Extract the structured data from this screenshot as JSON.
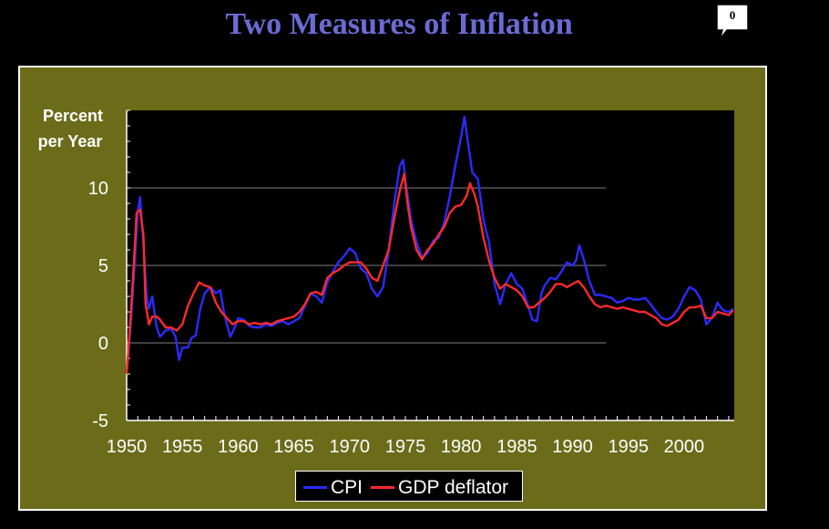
{
  "slide": {
    "title": "Two Measures of Inflation",
    "comment_count": "0"
  },
  "chart_data": {
    "type": "line",
    "title": "Two Measures of Inflation",
    "xlabel": "",
    "ylabel_lines": [
      "Percent",
      "per Year"
    ],
    "xlim": [
      1950,
      2004.5
    ],
    "ylim": [
      -5,
      15
    ],
    "x_ticks": [
      1950,
      1955,
      1960,
      1965,
      1970,
      1975,
      1980,
      1985,
      1990,
      1995,
      2000
    ],
    "y_ticks": [
      -5,
      0,
      5,
      10
    ],
    "grid": "horizontal",
    "legend_position": "bottom-center",
    "colors": {
      "frame": "#6b6b19",
      "plot_bg": "#000000",
      "cpi": "#2b2bff",
      "gdp_deflator": "#ff2a2a",
      "gridline": "#808080",
      "title": "#6b6bd6"
    },
    "series": [
      {
        "name": "CPI",
        "color": "#2b2bff",
        "points": [
          [
            1950.0,
            -2.0
          ],
          [
            1950.4,
            1.5
          ],
          [
            1950.8,
            6.0
          ],
          [
            1951.0,
            8.5
          ],
          [
            1951.2,
            9.4
          ],
          [
            1951.5,
            6.5
          ],
          [
            1951.8,
            3.0
          ],
          [
            1952.0,
            2.2
          ],
          [
            1952.3,
            3.0
          ],
          [
            1952.7,
            1.0
          ],
          [
            1953.0,
            0.4
          ],
          [
            1953.5,
            0.8
          ],
          [
            1954.0,
            0.9
          ],
          [
            1954.4,
            0.4
          ],
          [
            1954.7,
            -1.1
          ],
          [
            1955.0,
            -0.3
          ],
          [
            1955.5,
            -0.3
          ],
          [
            1955.8,
            0.3
          ],
          [
            1956.2,
            0.5
          ],
          [
            1956.6,
            2.2
          ],
          [
            1957.0,
            3.2
          ],
          [
            1957.5,
            3.6
          ],
          [
            1958.0,
            3.2
          ],
          [
            1958.4,
            3.4
          ],
          [
            1958.7,
            2.1
          ],
          [
            1959.0,
            1.2
          ],
          [
            1959.3,
            0.4
          ],
          [
            1959.7,
            1.0
          ],
          [
            1960.0,
            1.6
          ],
          [
            1960.5,
            1.5
          ],
          [
            1961.0,
            1.1
          ],
          [
            1961.5,
            1.0
          ],
          [
            1962.0,
            1.0
          ],
          [
            1962.5,
            1.2
          ],
          [
            1963.0,
            1.1
          ],
          [
            1963.5,
            1.3
          ],
          [
            1964.0,
            1.4
          ],
          [
            1964.5,
            1.2
          ],
          [
            1965.0,
            1.4
          ],
          [
            1965.5,
            1.6
          ],
          [
            1966.0,
            2.4
          ],
          [
            1966.5,
            3.2
          ],
          [
            1967.0,
            3.0
          ],
          [
            1967.5,
            2.6
          ],
          [
            1968.0,
            3.9
          ],
          [
            1968.5,
            4.6
          ],
          [
            1969.0,
            5.2
          ],
          [
            1969.5,
            5.6
          ],
          [
            1970.0,
            6.1
          ],
          [
            1970.5,
            5.8
          ],
          [
            1971.0,
            4.8
          ],
          [
            1971.5,
            4.5
          ],
          [
            1972.0,
            3.5
          ],
          [
            1972.5,
            3.0
          ],
          [
            1973.0,
            3.6
          ],
          [
            1973.5,
            5.9
          ],
          [
            1974.0,
            9.0
          ],
          [
            1974.5,
            11.4
          ],
          [
            1974.8,
            11.8
          ],
          [
            1975.0,
            10.5
          ],
          [
            1975.5,
            8.0
          ],
          [
            1976.0,
            6.5
          ],
          [
            1976.5,
            5.5
          ],
          [
            1977.0,
            5.8
          ],
          [
            1977.5,
            6.6
          ],
          [
            1978.0,
            6.8
          ],
          [
            1978.5,
            7.8
          ],
          [
            1979.0,
            9.5
          ],
          [
            1979.5,
            11.5
          ],
          [
            1980.0,
            13.3
          ],
          [
            1980.3,
            14.6
          ],
          [
            1980.6,
            13.0
          ],
          [
            1981.0,
            11.0
          ],
          [
            1981.5,
            10.6
          ],
          [
            1982.0,
            8.0
          ],
          [
            1982.5,
            6.5
          ],
          [
            1983.0,
            3.8
          ],
          [
            1983.5,
            2.5
          ],
          [
            1984.0,
            3.8
          ],
          [
            1984.5,
            4.5
          ],
          [
            1985.0,
            3.8
          ],
          [
            1985.5,
            3.5
          ],
          [
            1986.0,
            2.4
          ],
          [
            1986.4,
            1.5
          ],
          [
            1986.8,
            1.4
          ],
          [
            1987.2,
            3.2
          ],
          [
            1987.5,
            3.7
          ],
          [
            1988.0,
            4.2
          ],
          [
            1988.5,
            4.1
          ],
          [
            1989.0,
            4.6
          ],
          [
            1989.5,
            5.2
          ],
          [
            1990.0,
            5.0
          ],
          [
            1990.3,
            5.3
          ],
          [
            1990.6,
            6.3
          ],
          [
            1991.0,
            5.4
          ],
          [
            1991.5,
            4.0
          ],
          [
            1992.0,
            3.1
          ],
          [
            1992.5,
            3.1
          ],
          [
            1993.0,
            3.0
          ],
          [
            1993.5,
            2.9
          ],
          [
            1994.0,
            2.6
          ],
          [
            1994.5,
            2.7
          ],
          [
            1995.0,
            2.9
          ],
          [
            1995.5,
            2.8
          ],
          [
            1996.0,
            2.8
          ],
          [
            1996.5,
            2.9
          ],
          [
            1997.0,
            2.5
          ],
          [
            1997.5,
            2.0
          ],
          [
            1998.0,
            1.6
          ],
          [
            1998.5,
            1.5
          ],
          [
            1999.0,
            1.7
          ],
          [
            1999.5,
            2.2
          ],
          [
            2000.0,
            3.0
          ],
          [
            2000.5,
            3.6
          ],
          [
            2001.0,
            3.4
          ],
          [
            2001.5,
            2.8
          ],
          [
            2002.0,
            1.2
          ],
          [
            2002.5,
            1.6
          ],
          [
            2003.0,
            2.6
          ],
          [
            2003.5,
            2.1
          ],
          [
            2004.0,
            2.0
          ],
          [
            2004.4,
            2.2
          ]
        ]
      },
      {
        "name": "GDP deflator",
        "color": "#ff2a2a",
        "points": [
          [
            1950.0,
            -2.0
          ],
          [
            1950.3,
            1.0
          ],
          [
            1950.6,
            4.5
          ],
          [
            1950.9,
            8.4
          ],
          [
            1951.2,
            8.6
          ],
          [
            1951.5,
            7.0
          ],
          [
            1951.7,
            2.5
          ],
          [
            1952.0,
            1.2
          ],
          [
            1952.3,
            1.7
          ],
          [
            1952.7,
            1.7
          ],
          [
            1953.0,
            1.5
          ],
          [
            1953.5,
            1.0
          ],
          [
            1954.0,
            1.0
          ],
          [
            1954.5,
            0.8
          ],
          [
            1955.0,
            1.2
          ],
          [
            1955.5,
            2.4
          ],
          [
            1956.0,
            3.2
          ],
          [
            1956.5,
            3.9
          ],
          [
            1957.0,
            3.7
          ],
          [
            1957.5,
            3.6
          ],
          [
            1958.0,
            2.6
          ],
          [
            1958.5,
            2.0
          ],
          [
            1959.0,
            1.6
          ],
          [
            1959.5,
            1.2
          ],
          [
            1960.0,
            1.4
          ],
          [
            1960.5,
            1.4
          ],
          [
            1961.0,
            1.2
          ],
          [
            1961.5,
            1.3
          ],
          [
            1962.0,
            1.2
          ],
          [
            1962.5,
            1.3
          ],
          [
            1963.0,
            1.2
          ],
          [
            1963.5,
            1.4
          ],
          [
            1964.0,
            1.5
          ],
          [
            1964.5,
            1.6
          ],
          [
            1965.0,
            1.7
          ],
          [
            1965.5,
            2.0
          ],
          [
            1966.0,
            2.5
          ],
          [
            1966.5,
            3.2
          ],
          [
            1967.0,
            3.3
          ],
          [
            1967.5,
            3.1
          ],
          [
            1968.0,
            4.2
          ],
          [
            1968.5,
            4.5
          ],
          [
            1969.0,
            4.7
          ],
          [
            1969.5,
            5.0
          ],
          [
            1970.0,
            5.2
          ],
          [
            1970.5,
            5.2
          ],
          [
            1971.0,
            5.2
          ],
          [
            1971.5,
            4.8
          ],
          [
            1972.0,
            4.2
          ],
          [
            1972.5,
            4.0
          ],
          [
            1973.0,
            5.0
          ],
          [
            1973.5,
            6.0
          ],
          [
            1974.0,
            8.0
          ],
          [
            1974.5,
            9.8
          ],
          [
            1974.9,
            10.9
          ],
          [
            1975.2,
            9.0
          ],
          [
            1975.5,
            7.5
          ],
          [
            1976.0,
            6.0
          ],
          [
            1976.5,
            5.4
          ],
          [
            1977.0,
            6.0
          ],
          [
            1977.5,
            6.4
          ],
          [
            1978.0,
            7.0
          ],
          [
            1978.5,
            7.5
          ],
          [
            1979.0,
            8.4
          ],
          [
            1979.5,
            8.8
          ],
          [
            1980.0,
            8.9
          ],
          [
            1980.5,
            9.5
          ],
          [
            1980.8,
            10.3
          ],
          [
            1981.2,
            9.6
          ],
          [
            1981.5,
            8.8
          ],
          [
            1982.0,
            6.8
          ],
          [
            1982.5,
            5.3
          ],
          [
            1983.0,
            4.2
          ],
          [
            1983.5,
            3.5
          ],
          [
            1984.0,
            3.8
          ],
          [
            1984.5,
            3.6
          ],
          [
            1985.0,
            3.4
          ],
          [
            1985.5,
            3.0
          ],
          [
            1986.0,
            2.3
          ],
          [
            1986.5,
            2.3
          ],
          [
            1987.0,
            2.6
          ],
          [
            1987.5,
            2.9
          ],
          [
            1988.0,
            3.3
          ],
          [
            1988.5,
            3.8
          ],
          [
            1989.0,
            3.8
          ],
          [
            1989.5,
            3.6
          ],
          [
            1990.0,
            3.8
          ],
          [
            1990.5,
            4.0
          ],
          [
            1991.0,
            3.6
          ],
          [
            1991.5,
            3.0
          ],
          [
            1992.0,
            2.5
          ],
          [
            1992.5,
            2.3
          ],
          [
            1993.0,
            2.4
          ],
          [
            1993.5,
            2.3
          ],
          [
            1994.0,
            2.2
          ],
          [
            1994.5,
            2.3
          ],
          [
            1995.0,
            2.2
          ],
          [
            1995.5,
            2.1
          ],
          [
            1996.0,
            2.0
          ],
          [
            1996.5,
            2.0
          ],
          [
            1997.0,
            1.8
          ],
          [
            1997.5,
            1.6
          ],
          [
            1998.0,
            1.2
          ],
          [
            1998.5,
            1.1
          ],
          [
            1999.0,
            1.3
          ],
          [
            1999.5,
            1.5
          ],
          [
            2000.0,
            2.0
          ],
          [
            2000.5,
            2.3
          ],
          [
            2001.0,
            2.3
          ],
          [
            2001.5,
            2.4
          ],
          [
            2002.0,
            1.6
          ],
          [
            2002.5,
            1.6
          ],
          [
            2003.0,
            2.0
          ],
          [
            2003.5,
            1.9
          ],
          [
            2004.0,
            1.8
          ],
          [
            2004.4,
            2.1
          ]
        ]
      }
    ]
  }
}
